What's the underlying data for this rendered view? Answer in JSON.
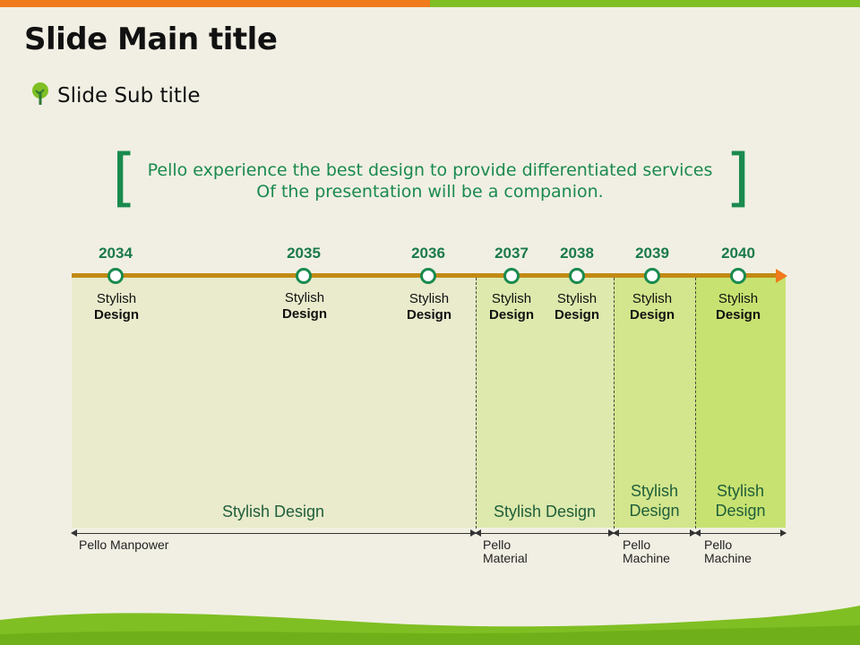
{
  "slide": {
    "title": "Slide Main title",
    "subtitle": "Slide Sub title",
    "quote_line1": "Pello experience the best design to provide differentiated services",
    "quote_line2": "Of the presentation will be a companion.",
    "bracket_left": "[",
    "bracket_right": "]"
  },
  "colors": {
    "accent_green": "#1a8a4f",
    "axis": "#c28a13",
    "orange": "#f07a1c",
    "lime": "#7fbf23"
  },
  "timeline": [
    {
      "year": "2034",
      "line1": "Stylish",
      "line2": "Design"
    },
    {
      "year": "2035",
      "line1": "Stylish",
      "line2": "Design"
    },
    {
      "year": "2036",
      "line1": "Stylish",
      "line2": "Design"
    },
    {
      "year": "2037",
      "line1": "Stylish",
      "line2": "Design"
    },
    {
      "year": "2038",
      "line1": "Stylish",
      "line2": "Design"
    },
    {
      "year": "2039",
      "line1": "Stylish",
      "line2": "Design"
    },
    {
      "year": "2040",
      "line1": "Stylish",
      "line2": "Design"
    }
  ],
  "segments": [
    {
      "label": "Stylish Design",
      "caption_line1": "Pello Manpower",
      "caption_line2": ""
    },
    {
      "label": "Stylish Design",
      "caption_line1": "Pello",
      "caption_line2": "Material"
    },
    {
      "label_line1": "Stylish",
      "label_line2": "Design",
      "caption_line1": "Pello",
      "caption_line2": "Machine"
    },
    {
      "label_line1": "Stylish",
      "label_line2": "Design",
      "caption_line1": "Pello",
      "caption_line2": "Machine"
    }
  ]
}
